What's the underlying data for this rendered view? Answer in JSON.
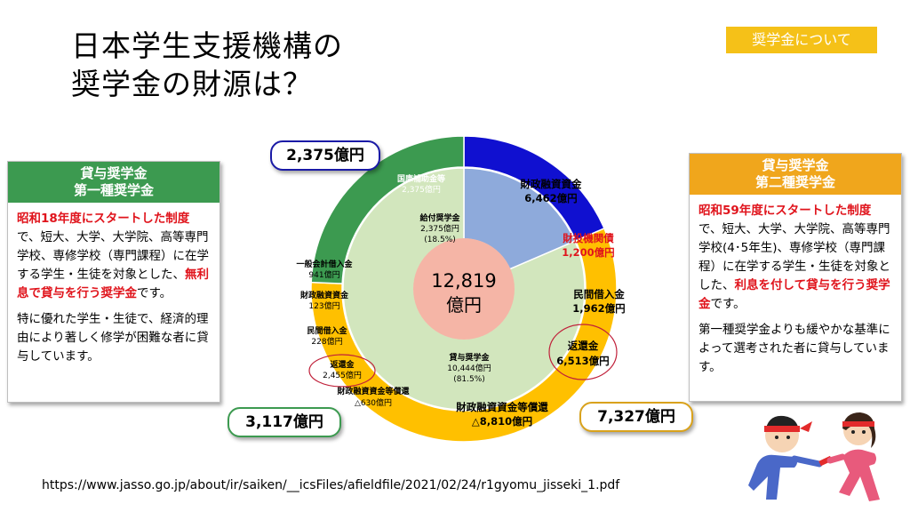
{
  "title": {
    "line1": "日本学生支援機構の",
    "line2": "奨学金の財源は？"
  },
  "tag": "奨学金について",
  "left_card": {
    "head1": "貸与奨学金",
    "head2": "第一種奨学金",
    "red1": "昭和18年度にスタートした制度",
    "text1": "で、短大、大学、大学院、高等専門学校、専修学校（専門課程）に在学する学生・生徒を対象とした、",
    "red2": "無利息で貸与を行う奨学金",
    "text2": "です。",
    "para2": "特に優れた学生・生徒で、経済的理由により著しく修学が困難な者に貸与しています。"
  },
  "right_card": {
    "head1": "貸与奨学金",
    "head2": "第二種奨学金",
    "red1": "昭和59年度にスタートした制度",
    "text1": "で、短大、大学、大学院、高等専門学校(4･5年生)、専修学校（専門課程）に在学する学生・生徒を対象とした、",
    "red2": "利息を付して貸与を行う奨学金",
    "text2": "です。",
    "para2": "第一種奨学金よりも緩やかな基準によって選考された者に貸与しています。"
  },
  "bubbles": {
    "top": "2,375億円",
    "left": "3,117億円",
    "right": "7,327億円"
  },
  "chart_data": {
    "type": "pie",
    "center_label": {
      "line1": "12,819",
      "line2": "億円"
    },
    "outer_ring": [
      {
        "name": "国庫補助金等",
        "value": 2375,
        "color": "#1010d0"
      },
      {
        "name": "第二種奨学金財源",
        "value": 7327,
        "color": "#ffc000"
      },
      {
        "name": "第一種奨学金財源",
        "value": 3117,
        "color": "#3c9a50"
      }
    ],
    "inner_ring": [
      {
        "name": "給付奨学金",
        "value": 2375,
        "percent": "18.5%",
        "color": "#8eaadb"
      },
      {
        "name": "貸与奨学金",
        "value": 10444,
        "percent": "81.5%",
        "color": "#d2e6bd"
      }
    ],
    "labels": {
      "kokko": {
        "line1": "国庫補助金等",
        "line2": "2,375億円"
      },
      "kyufu": {
        "line1": "給付奨学金",
        "line2": "2,375億円",
        "line3": "(18.5%)"
      },
      "taiyo": {
        "line1": "貸与奨学金",
        "line2": "10,444億円",
        "line3": "(81.5%)"
      },
      "zaisei_yushi": {
        "line1": "財政融資資金",
        "line2": "6,462億円"
      },
      "zaitoki": {
        "line1": "財投機関債",
        "line2": "1,200億円"
      },
      "minkan_r": {
        "line1": "民間借入金",
        "line2": "1,962億円"
      },
      "henkan_r": {
        "line1": "返還金",
        "line2": "6,513億円"
      },
      "shokan_r": {
        "line1": "財政融資資金等償還",
        "line2": "△8,810億円"
      },
      "ippan": {
        "line1": "一般会計借入金",
        "line2": "941億円"
      },
      "zaisei_l": {
        "line1": "財政融資資金",
        "line2": "123億円"
      },
      "minkan_l": {
        "line1": "民間借入金",
        "line2": "228億円"
      },
      "henkan_l": {
        "line1": "返還金",
        "line2": "2,455億円"
      },
      "shokan_l": {
        "line1": "財政融資資金等償還",
        "line2": "△630億円"
      }
    }
  },
  "url": "https://www.jasso.go.jp/about/ir/saiken/__icsFiles/afieldfile/2021/02/24/r1gyomu_jisseki_1.pdf"
}
